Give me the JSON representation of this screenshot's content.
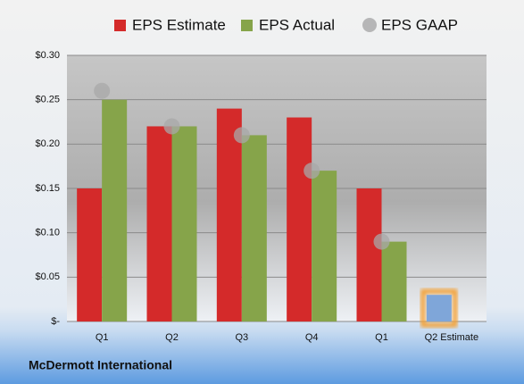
{
  "chart_data": {
    "type": "bar",
    "title": "McDermott International",
    "categories": [
      "Q1",
      "Q2",
      "Q3",
      "Q4",
      "Q1",
      "Q2 Estimate"
    ],
    "series": [
      {
        "name": "EPS Estimate",
        "color": "#d42a2a",
        "colors": [
          "#d42a2a",
          "#d42a2a",
          "#d42a2a",
          "#d42a2a",
          "#d42a2a",
          "#7fa6d9"
        ],
        "values": [
          0.15,
          0.22,
          0.24,
          0.23,
          0.15,
          0.03
        ]
      },
      {
        "name": "EPS Actual",
        "color": "#86a44a",
        "values": [
          0.25,
          0.22,
          0.21,
          0.17,
          0.09,
          null
        ]
      },
      {
        "name": "EPS GAAP",
        "color": "#a8a8a8",
        "marker": "circle",
        "values": [
          0.26,
          0.22,
          0.21,
          0.17,
          0.09,
          null
        ]
      }
    ],
    "ylim": [
      0,
      0.3
    ],
    "yticks": [
      {
        "value": 0,
        "label": "$-"
      },
      {
        "value": 0.05,
        "label": "$0.05"
      },
      {
        "value": 0.1,
        "label": "$0.10"
      },
      {
        "value": 0.15,
        "label": "$0.15"
      },
      {
        "value": 0.2,
        "label": "$0.20"
      },
      {
        "value": 0.25,
        "label": "$0.25"
      },
      {
        "value": 0.3,
        "label": "$0.30"
      }
    ],
    "grid": true,
    "legend": "top"
  }
}
